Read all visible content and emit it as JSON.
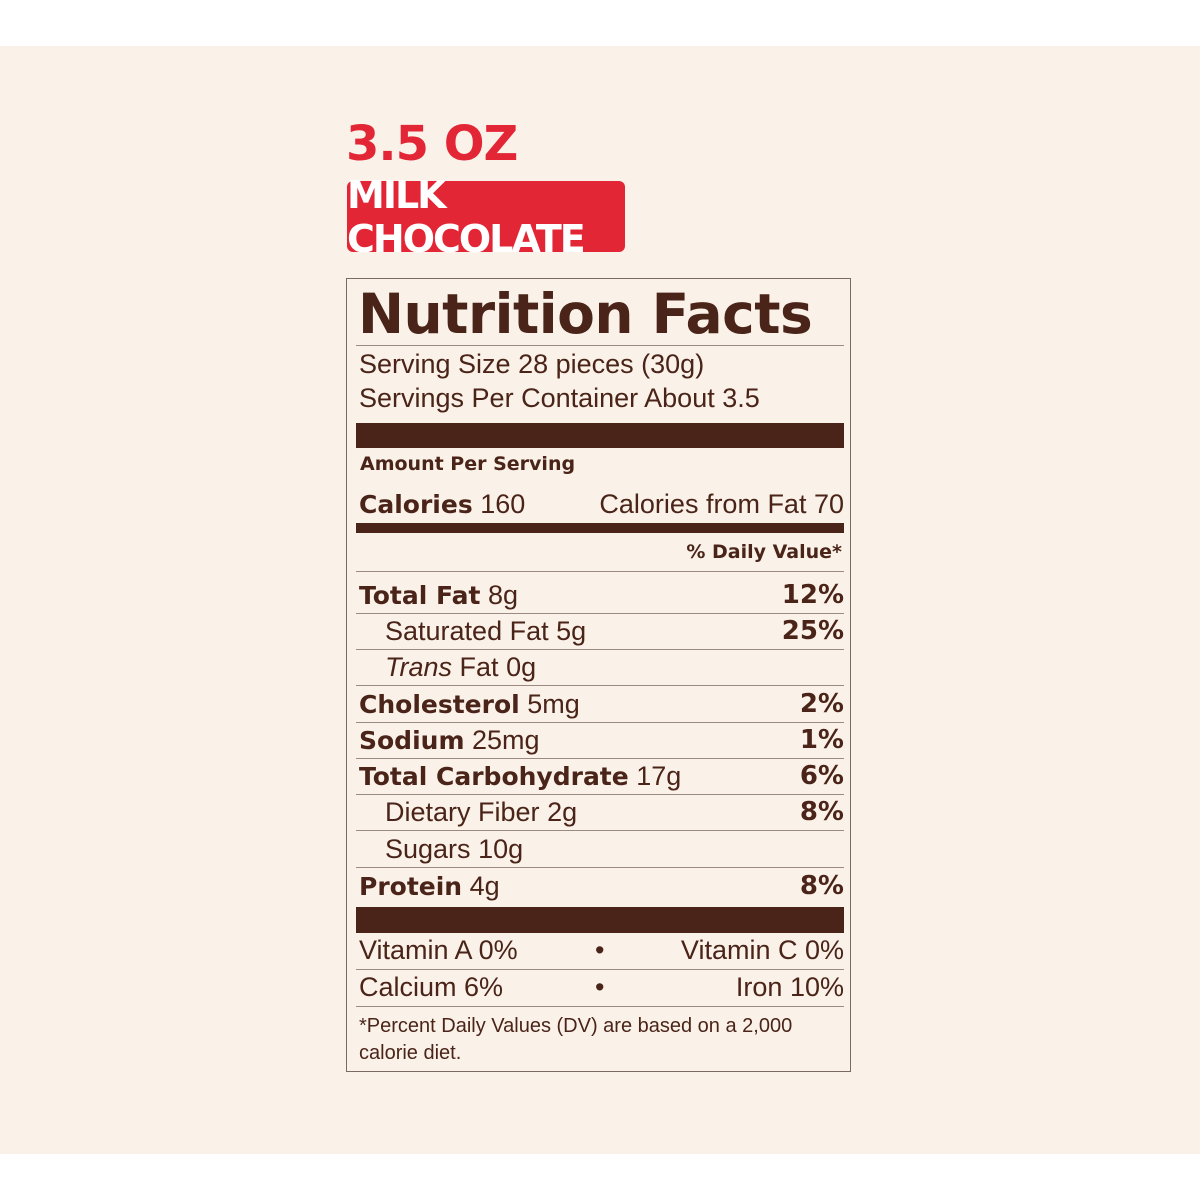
{
  "package": {
    "size": "3.5 OZ",
    "flavor": "MILK CHOCOLATE"
  },
  "label": {
    "title": "Nutrition Facts",
    "serving_size": "Serving Size 28 pieces (30g)",
    "servings_per_container": "Servings Per Container About 3.5",
    "amount_per_serving": "Amount Per Serving",
    "calories_label": "Calories",
    "calories_value": "160",
    "calories_from_fat": "Calories from Fat 70",
    "daily_value_header": "% Daily Value*",
    "nutrients": [
      {
        "name": "Total Fat",
        "amount": "8g",
        "dv": "12%"
      },
      {
        "name": "Saturated Fat",
        "amount": "5g",
        "dv": "25%"
      },
      {
        "prefix": "Trans",
        "name": "Fat",
        "amount": "0g",
        "dv": ""
      },
      {
        "name": "Cholesterol",
        "amount": "5mg",
        "dv": "2%"
      },
      {
        "name": "Sodium",
        "amount": "25mg",
        "dv": "1%"
      },
      {
        "name": "Total Carbohydrate",
        "amount": "17g",
        "dv": "6%"
      },
      {
        "name": "Dietary Fiber",
        "amount": "2g",
        "dv": "8%"
      },
      {
        "name": "Sugars",
        "amount": "10g",
        "dv": ""
      },
      {
        "name": "Protein",
        "amount": "4g",
        "dv": "8%"
      }
    ],
    "vitamins": [
      {
        "left": "Vitamin A 0%",
        "bullet": "•",
        "right": "Vitamin C 0%"
      },
      {
        "left": "Calcium 6%",
        "bullet": "•",
        "right": "Iron 10%"
      }
    ],
    "footnote": "*Percent Daily Values (DV) are based on a 2,000 calorie diet."
  },
  "colors": {
    "background": "#faf1e8",
    "brand_red": "#e32636",
    "label_brown": "#4a2418"
  }
}
